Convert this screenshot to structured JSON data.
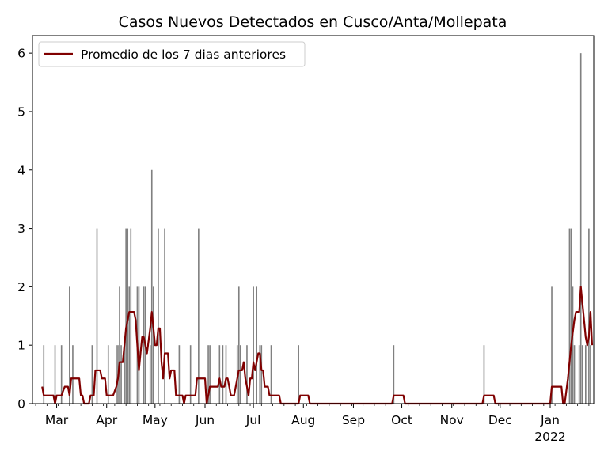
{
  "chart_data": {
    "type": "bar",
    "title": "Casos Nuevos Detectados en Cusco/Anta/Mollepata",
    "xlabel": "",
    "ylabel": "",
    "ylim": [
      0,
      6.3
    ],
    "y_ticks": [
      0,
      1,
      2,
      3,
      4,
      5,
      6
    ],
    "x_range": [
      "2021-02-14",
      "2022-01-28"
    ],
    "x_ticks": [
      {
        "date": "2021-03-01",
        "label": "Mar"
      },
      {
        "date": "2021-04-01",
        "label": "Apr"
      },
      {
        "date": "2021-05-01",
        "label": "May"
      },
      {
        "date": "2021-06-01",
        "label": "Jun"
      },
      {
        "date": "2021-07-01",
        "label": "Jul"
      },
      {
        "date": "2021-08-01",
        "label": "Aug"
      },
      {
        "date": "2021-09-01",
        "label": "Sep"
      },
      {
        "date": "2021-10-01",
        "label": "Oct"
      },
      {
        "date": "2021-11-01",
        "label": "Nov"
      },
      {
        "date": "2021-12-01",
        "label": "Dec"
      },
      {
        "date": "2022-01-01",
        "label": "Jan",
        "year": "2022"
      }
    ],
    "grid": false,
    "legend_position": "top-left",
    "bar_color": "#808080",
    "line_color": "#800000",
    "series": [
      {
        "kind": "bar",
        "points": [
          [
            "2021-02-21",
            1
          ],
          [
            "2021-02-28",
            1
          ],
          [
            "2021-03-04",
            1
          ],
          [
            "2021-03-09",
            2
          ],
          [
            "2021-03-11",
            1
          ],
          [
            "2021-03-23",
            1
          ],
          [
            "2021-03-26",
            3
          ],
          [
            "2021-04-02",
            1
          ],
          [
            "2021-04-07",
            1
          ],
          [
            "2021-04-08",
            1
          ],
          [
            "2021-04-09",
            2
          ],
          [
            "2021-04-10",
            1
          ],
          [
            "2021-04-12",
            1
          ],
          [
            "2021-04-13",
            3
          ],
          [
            "2021-04-14",
            3
          ],
          [
            "2021-04-15",
            2
          ],
          [
            "2021-04-16",
            3
          ],
          [
            "2021-04-20",
            2
          ],
          [
            "2021-04-21",
            2
          ],
          [
            "2021-04-24",
            2
          ],
          [
            "2021-04-25",
            2
          ],
          [
            "2021-04-28",
            1
          ],
          [
            "2021-04-29",
            4
          ],
          [
            "2021-04-30",
            2
          ],
          [
            "2021-05-03",
            3
          ],
          [
            "2021-05-07",
            3
          ],
          [
            "2021-05-16",
            1
          ],
          [
            "2021-05-23",
            1
          ],
          [
            "2021-05-28",
            3
          ],
          [
            "2021-06-03",
            1
          ],
          [
            "2021-06-04",
            1
          ],
          [
            "2021-06-10",
            1
          ],
          [
            "2021-06-12",
            1
          ],
          [
            "2021-06-14",
            1
          ],
          [
            "2021-06-21",
            1
          ],
          [
            "2021-06-22",
            2
          ],
          [
            "2021-06-23",
            1
          ],
          [
            "2021-06-27",
            1
          ],
          [
            "2021-07-01",
            2
          ],
          [
            "2021-07-03",
            2
          ],
          [
            "2021-07-05",
            1
          ],
          [
            "2021-07-06",
            1
          ],
          [
            "2021-07-12",
            1
          ],
          [
            "2021-07-29",
            1
          ],
          [
            "2021-09-26",
            1
          ],
          [
            "2021-11-21",
            1
          ],
          [
            "2022-01-02",
            2
          ],
          [
            "2022-01-13",
            3
          ],
          [
            "2022-01-14",
            3
          ],
          [
            "2022-01-15",
            2
          ],
          [
            "2022-01-16",
            1
          ],
          [
            "2022-01-19",
            1
          ],
          [
            "2022-01-20",
            6
          ],
          [
            "2022-01-21",
            1
          ],
          [
            "2022-01-23",
            1
          ],
          [
            "2022-01-25",
            3
          ],
          [
            "2022-01-26",
            1
          ]
        ]
      },
      {
        "kind": "line",
        "name": "Promedio de los 7 dias anteriores",
        "points": [
          [
            "2021-02-20",
            0.29
          ],
          [
            "2021-02-21",
            0.14
          ],
          [
            "2021-02-27",
            0.14
          ],
          [
            "2021-02-28",
            0.0
          ],
          [
            "2021-03-01",
            0.14
          ],
          [
            "2021-03-04",
            0.14
          ],
          [
            "2021-03-06",
            0.29
          ],
          [
            "2021-03-08",
            0.29
          ],
          [
            "2021-03-09",
            0.14
          ],
          [
            "2021-03-10",
            0.43
          ],
          [
            "2021-03-15",
            0.43
          ],
          [
            "2021-03-16",
            0.14
          ],
          [
            "2021-03-17",
            0.14
          ],
          [
            "2021-03-18",
            0.0
          ],
          [
            "2021-03-21",
            0.0
          ],
          [
            "2021-03-22",
            0.14
          ],
          [
            "2021-03-24",
            0.14
          ],
          [
            "2021-03-25",
            0.57
          ],
          [
            "2021-03-28",
            0.57
          ],
          [
            "2021-03-29",
            0.43
          ],
          [
            "2021-03-31",
            0.43
          ],
          [
            "2021-04-01",
            0.14
          ],
          [
            "2021-04-05",
            0.14
          ],
          [
            "2021-04-07",
            0.29
          ],
          [
            "2021-04-08",
            0.43
          ],
          [
            "2021-04-09",
            0.71
          ],
          [
            "2021-04-11",
            0.71
          ],
          [
            "2021-04-12",
            1.0
          ],
          [
            "2021-04-13",
            1.29
          ],
          [
            "2021-04-15",
            1.57
          ],
          [
            "2021-04-18",
            1.57
          ],
          [
            "2021-04-19",
            1.43
          ],
          [
            "2021-04-20",
            1.0
          ],
          [
            "2021-04-21",
            0.57
          ],
          [
            "2021-04-22",
            0.86
          ],
          [
            "2021-04-23",
            1.14
          ],
          [
            "2021-04-24",
            1.14
          ],
          [
            "2021-04-26",
            0.86
          ],
          [
            "2021-04-28",
            1.29
          ],
          [
            "2021-04-29",
            1.57
          ],
          [
            "2021-04-30",
            1.29
          ],
          [
            "2021-05-01",
            1.0
          ],
          [
            "2021-05-02",
            1.0
          ],
          [
            "2021-05-03",
            1.29
          ],
          [
            "2021-05-04",
            1.29
          ],
          [
            "2021-05-05",
            0.71
          ],
          [
            "2021-05-06",
            0.43
          ],
          [
            "2021-05-07",
            0.86
          ],
          [
            "2021-05-09",
            0.86
          ],
          [
            "2021-05-10",
            0.43
          ],
          [
            "2021-05-11",
            0.57
          ],
          [
            "2021-05-13",
            0.57
          ],
          [
            "2021-05-14",
            0.14
          ],
          [
            "2021-05-16",
            0.14
          ],
          [
            "2021-05-18",
            0.14
          ],
          [
            "2021-05-19",
            0.0
          ],
          [
            "2021-05-20",
            0.14
          ],
          [
            "2021-05-26",
            0.14
          ],
          [
            "2021-05-27",
            0.43
          ],
          [
            "2021-06-01",
            0.43
          ],
          [
            "2021-06-02",
            0.0
          ],
          [
            "2021-06-03",
            0.14
          ],
          [
            "2021-06-04",
            0.29
          ],
          [
            "2021-06-07",
            0.29
          ],
          [
            "2021-06-09",
            0.29
          ],
          [
            "2021-06-10",
            0.43
          ],
          [
            "2021-06-11",
            0.29
          ],
          [
            "2021-06-13",
            0.29
          ],
          [
            "2021-06-14",
            0.43
          ],
          [
            "2021-06-15",
            0.43
          ],
          [
            "2021-06-16",
            0.29
          ],
          [
            "2021-06-17",
            0.14
          ],
          [
            "2021-06-19",
            0.14
          ],
          [
            "2021-06-21",
            0.43
          ],
          [
            "2021-06-22",
            0.57
          ],
          [
            "2021-06-24",
            0.57
          ],
          [
            "2021-06-25",
            0.71
          ],
          [
            "2021-06-26",
            0.43
          ],
          [
            "2021-06-27",
            0.29
          ],
          [
            "2021-06-28",
            0.14
          ],
          [
            "2021-06-29",
            0.43
          ],
          [
            "2021-06-30",
            0.43
          ],
          [
            "2021-07-01",
            0.71
          ],
          [
            "2021-07-02",
            0.57
          ],
          [
            "2021-07-03",
            0.71
          ],
          [
            "2021-07-04",
            0.86
          ],
          [
            "2021-07-05",
            0.86
          ],
          [
            "2021-07-06",
            0.57
          ],
          [
            "2021-07-07",
            0.57
          ],
          [
            "2021-07-08",
            0.29
          ],
          [
            "2021-07-10",
            0.29
          ],
          [
            "2021-07-11",
            0.14
          ],
          [
            "2021-07-12",
            0.14
          ],
          [
            "2021-07-17",
            0.14
          ],
          [
            "2021-07-18",
            0.0
          ],
          [
            "2021-07-29",
            0.0
          ],
          [
            "2021-07-30",
            0.14
          ],
          [
            "2021-08-04",
            0.14
          ],
          [
            "2021-08-05",
            0.0
          ],
          [
            "2021-09-25",
            0.0
          ],
          [
            "2021-09-26",
            0.14
          ],
          [
            "2021-10-02",
            0.14
          ],
          [
            "2021-10-03",
            0.0
          ],
          [
            "2021-11-20",
            0.0
          ],
          [
            "2021-11-21",
            0.14
          ],
          [
            "2021-11-27",
            0.14
          ],
          [
            "2021-11-28",
            0.0
          ],
          [
            "2022-01-01",
            0.0
          ],
          [
            "2022-01-02",
            0.29
          ],
          [
            "2022-01-08",
            0.29
          ],
          [
            "2022-01-09",
            0.0
          ],
          [
            "2022-01-10",
            0.0
          ],
          [
            "2022-01-12",
            0.43
          ],
          [
            "2022-01-14",
            1.0
          ],
          [
            "2022-01-16",
            1.43
          ],
          [
            "2022-01-17",
            1.57
          ],
          [
            "2022-01-19",
            1.57
          ],
          [
            "2022-01-20",
            2.0
          ],
          [
            "2022-01-21",
            1.71
          ],
          [
            "2022-01-22",
            1.43
          ],
          [
            "2022-01-23",
            1.14
          ],
          [
            "2022-01-24",
            1.0
          ],
          [
            "2022-01-25",
            1.14
          ],
          [
            "2022-01-26",
            1.57
          ],
          [
            "2022-01-27",
            1.0
          ]
        ]
      }
    ]
  }
}
